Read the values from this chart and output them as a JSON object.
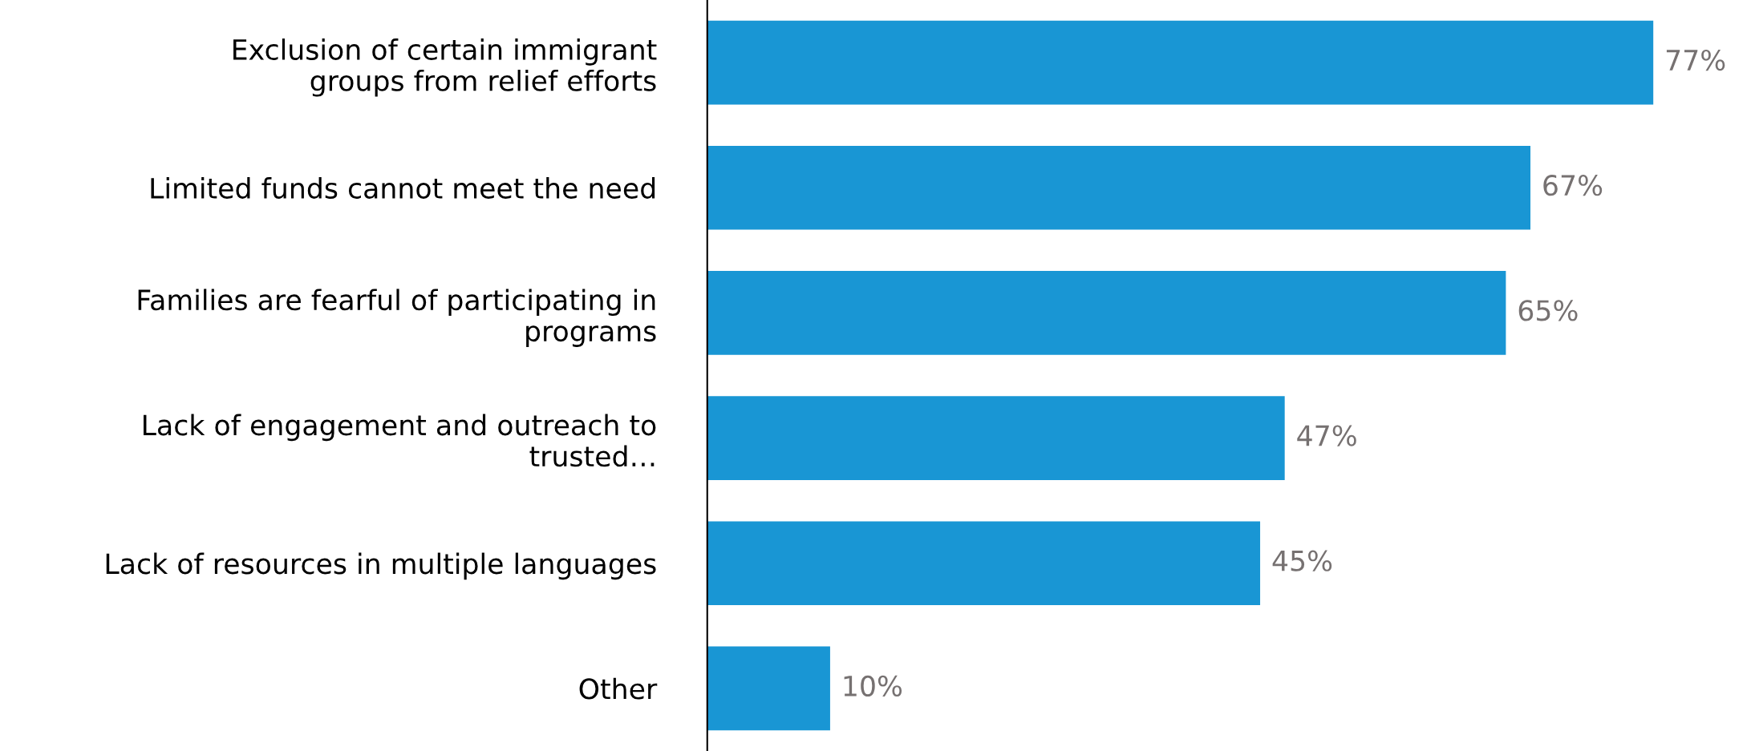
{
  "chart_data": {
    "type": "bar",
    "orientation": "horizontal",
    "categories": [
      "Exclusion of certain immigrant\ngroups from relief efforts",
      "Limited funds cannot meet the need",
      "Families are fearful of participating in\nprograms",
      "Lack of engagement and outreach to\ntrusted…",
      "Lack of resources in multiple languages",
      "Other"
    ],
    "values": [
      77,
      67,
      65,
      47,
      45,
      10
    ],
    "value_labels": [
      "77%",
      "67%",
      "65%",
      "47%",
      "45%",
      "10%"
    ],
    "color": "#1996d4",
    "tick_labels": "y",
    "grid": false,
    "legend": false
  }
}
